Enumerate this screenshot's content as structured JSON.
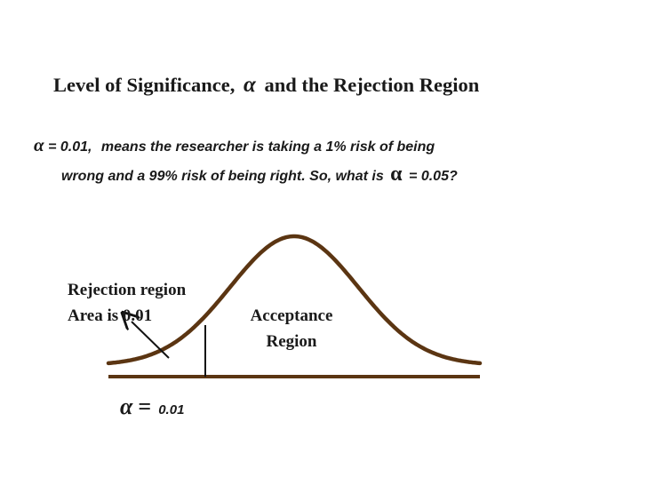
{
  "title": {
    "prefix": "Level of Significance,",
    "symbol": "α",
    "suffix": "and the Rejection Region"
  },
  "statement": {
    "line1_symbol": "α",
    "line1_value": "= 0.01,",
    "line1_text": "means the researcher is taking a 1% risk of being",
    "line2_text": "wrong and a 99% risk of being right. So, what is",
    "line2_symbol": "α",
    "line2_end": "= 0.05?"
  },
  "diagram": {
    "rejection_label_line1": "Rejection region",
    "rejection_label_line2": "Area is 0.01",
    "acceptance_label_line1": "Acceptance",
    "acceptance_label_line2": "Region",
    "alpha_symbol": "α",
    "alpha_equals": "=",
    "alpha_value": "0.01",
    "colors": {
      "curve": "#5b3512",
      "lines": "#111111"
    }
  }
}
